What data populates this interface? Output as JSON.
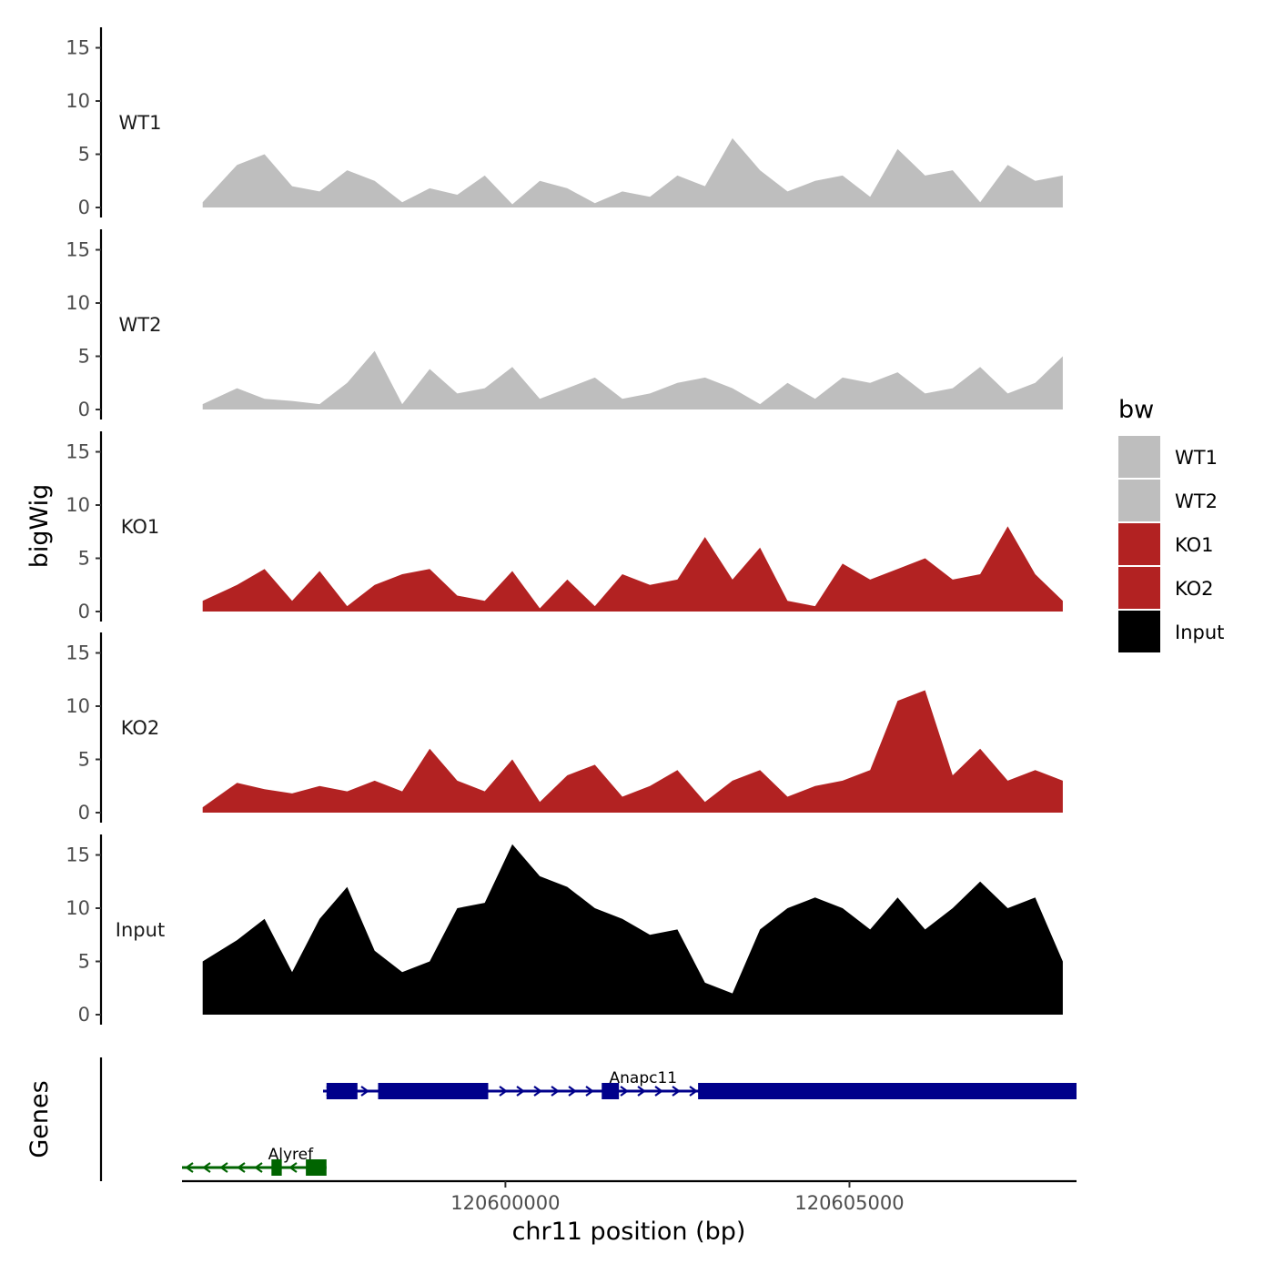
{
  "chart_data": {
    "type": "area",
    "chromosome_axis_label": "chr11 position (bp)",
    "y_axis_label": "bigWig",
    "genes_panel_label": "Genes",
    "x_range": [
      120595300,
      120608300
    ],
    "x_ticks": [
      120600000,
      120605000
    ],
    "x_tick_labels": [
      "120600000",
      "120605000"
    ],
    "y_range": [
      0,
      16
    ],
    "y_ticks": [
      0,
      5,
      10,
      15
    ],
    "y_tick_labels": [
      "0",
      "5",
      "10",
      "15"
    ],
    "legend": {
      "title": "bw",
      "entries": [
        {
          "label": "WT1",
          "color": "#BEBEBE"
        },
        {
          "label": "WT2",
          "color": "#BEBEBE"
        },
        {
          "label": "KO1",
          "color": "#B22222"
        },
        {
          "label": "KO2",
          "color": "#B22222"
        },
        {
          "label": "Input",
          "color": "#000000"
        }
      ]
    },
    "tracks": [
      {
        "name": "WT1",
        "color": "#BEBEBE",
        "x": [
          120595600,
          120596100,
          120596500,
          120596900,
          120597300,
          120597700,
          120598100,
          120598500,
          120598900,
          120599300,
          120599700,
          120600100,
          120600500,
          120600900,
          120601300,
          120601700,
          120602100,
          120602500,
          120602900,
          120603300,
          120603700,
          120604100,
          120604500,
          120604900,
          120605300,
          120605700,
          120606100,
          120606500,
          120606900,
          120607300,
          120607700,
          120608100
        ],
        "values": [
          0.5,
          4.0,
          5.0,
          2.0,
          1.5,
          3.5,
          2.5,
          0.5,
          1.8,
          1.2,
          3.0,
          0.3,
          2.5,
          1.8,
          0.4,
          1.5,
          1.0,
          3.0,
          2.0,
          6.5,
          3.5,
          1.5,
          2.5,
          3.0,
          1.0,
          5.5,
          3.0,
          3.5,
          0.5,
          4.0,
          2.5,
          3.0
        ]
      },
      {
        "name": "WT2",
        "color": "#BEBEBE",
        "x": [
          120595600,
          120596100,
          120596500,
          120596900,
          120597300,
          120597700,
          120598100,
          120598500,
          120598900,
          120599300,
          120599700,
          120600100,
          120600500,
          120600900,
          120601300,
          120601700,
          120602100,
          120602500,
          120602900,
          120603300,
          120603700,
          120604100,
          120604500,
          120604900,
          120605300,
          120605700,
          120606100,
          120606500,
          120606900,
          120607300,
          120607700,
          120608100
        ],
        "values": [
          0.5,
          2.0,
          1.0,
          0.8,
          0.5,
          2.5,
          5.5,
          0.5,
          3.8,
          1.5,
          2.0,
          4.0,
          1.0,
          2.0,
          3.0,
          1.0,
          1.5,
          2.5,
          3.0,
          2.0,
          0.5,
          2.5,
          1.0,
          3.0,
          2.5,
          3.5,
          1.5,
          2.0,
          4.0,
          1.5,
          2.5,
          5.0
        ]
      },
      {
        "name": "KO1",
        "color": "#B22222",
        "x": [
          120595600,
          120596100,
          120596500,
          120596900,
          120597300,
          120597700,
          120598100,
          120598500,
          120598900,
          120599300,
          120599700,
          120600100,
          120600500,
          120600900,
          120601300,
          120601700,
          120602100,
          120602500,
          120602900,
          120603300,
          120603700,
          120604100,
          120604500,
          120604900,
          120605300,
          120605700,
          120606100,
          120606500,
          120606900,
          120607300,
          120607700,
          120608100
        ],
        "values": [
          1.0,
          2.5,
          4.0,
          1.0,
          3.8,
          0.5,
          2.5,
          3.5,
          4.0,
          1.5,
          1.0,
          3.8,
          0.3,
          3.0,
          0.5,
          3.5,
          2.5,
          3.0,
          7.0,
          3.0,
          6.0,
          1.0,
          0.5,
          4.5,
          3.0,
          4.0,
          5.0,
          3.0,
          3.5,
          8.0,
          3.5,
          1.0
        ]
      },
      {
        "name": "KO2",
        "color": "#B22222",
        "x": [
          120595600,
          120596100,
          120596500,
          120596900,
          120597300,
          120597700,
          120598100,
          120598500,
          120598900,
          120599300,
          120599700,
          120600100,
          120600500,
          120600900,
          120601300,
          120601700,
          120602100,
          120602500,
          120602900,
          120603300,
          120603700,
          120604100,
          120604500,
          120604900,
          120605300,
          120605700,
          120606100,
          120606500,
          120606900,
          120607300,
          120607700,
          120608100
        ],
        "values": [
          0.5,
          2.8,
          2.2,
          1.8,
          2.5,
          2.0,
          3.0,
          2.0,
          6.0,
          3.0,
          2.0,
          5.0,
          1.0,
          3.5,
          4.5,
          1.5,
          2.5,
          4.0,
          1.0,
          3.0,
          4.0,
          1.5,
          2.5,
          3.0,
          4.0,
          10.5,
          11.5,
          3.5,
          6.0,
          3.0,
          4.0,
          3.0
        ]
      },
      {
        "name": "Input",
        "color": "#000000",
        "x": [
          120595600,
          120596100,
          120596500,
          120596900,
          120597300,
          120597700,
          120598100,
          120598500,
          120598900,
          120599300,
          120599700,
          120600100,
          120600500,
          120600900,
          120601300,
          120601700,
          120602100,
          120602500,
          120602900,
          120603300,
          120603700,
          120604100,
          120604500,
          120604900,
          120605300,
          120605700,
          120606100,
          120606500,
          120606900,
          120607300,
          120607700,
          120608100
        ],
        "values": [
          5.0,
          7.0,
          9.0,
          4.0,
          9.0,
          12.0,
          6.0,
          4.0,
          5.0,
          10.0,
          10.5,
          16.0,
          13.0,
          12.0,
          10.0,
          9.0,
          7.5,
          8.0,
          3.0,
          2.0,
          8.0,
          10.0,
          11.0,
          10.0,
          8.0,
          11.0,
          8.0,
          10.0,
          12.5,
          10.0,
          11.0,
          5.0
        ]
      }
    ],
    "genes": [
      {
        "name": "Anapc11",
        "strand": "+",
        "color": "#00008B",
        "start": 120597350,
        "end": 120608300,
        "blocks": [
          [
            120597400,
            120597850
          ],
          [
            120598150,
            120599750
          ],
          [
            120601400,
            120601650
          ],
          [
            120602800,
            120608300
          ]
        ]
      },
      {
        "name": "Alyref",
        "strand": "-",
        "color": "#006400",
        "start": 120595300,
        "end": 120597400,
        "blocks": [
          [
            120596600,
            120596750
          ],
          [
            120597100,
            120597400
          ]
        ]
      }
    ]
  }
}
